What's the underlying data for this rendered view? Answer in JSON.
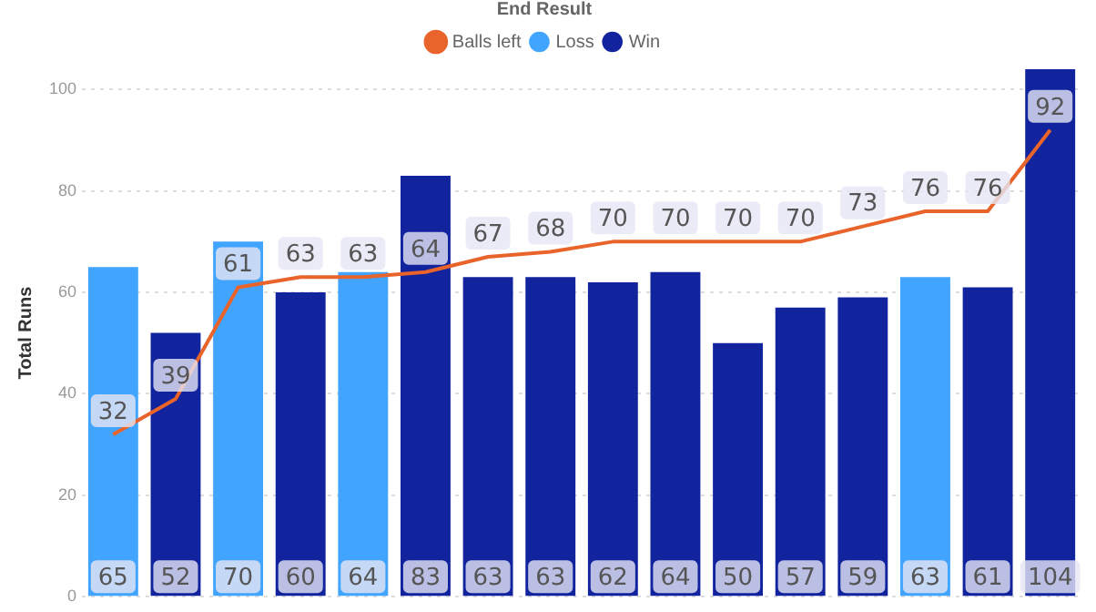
{
  "chart_data": {
    "type": "bar",
    "ylabel": "Total Runs",
    "legend_title": "End Result",
    "categories": [
      null,
      null,
      null,
      null,
      null,
      null,
      null,
      null,
      null,
      null,
      null,
      null,
      null,
      null,
      null,
      null
    ],
    "series": [
      {
        "name": "Loss",
        "color": "#41a4ff",
        "values": [
          65,
          null,
          70,
          null,
          64,
          null,
          null,
          null,
          null,
          null,
          null,
          null,
          null,
          63,
          null,
          null
        ]
      },
      {
        "name": "Win",
        "color": "#12239e",
        "values": [
          null,
          52,
          null,
          60,
          null,
          83,
          63,
          63,
          62,
          64,
          50,
          57,
          59,
          null,
          61,
          104
        ]
      },
      {
        "name": "Balls left",
        "type": "line",
        "color": "#e8642a",
        "values": [
          32,
          39,
          61,
          63,
          63,
          64,
          67,
          68,
          70,
          70,
          70,
          70,
          73,
          76,
          76,
          92
        ]
      }
    ],
    "ylim": [
      0,
      104
    ],
    "yticks": [
      0,
      20,
      40,
      60,
      80,
      100
    ],
    "grid": "y",
    "legend": "top",
    "data_labels": true,
    "tick_labels": "y",
    "marker": "none"
  }
}
